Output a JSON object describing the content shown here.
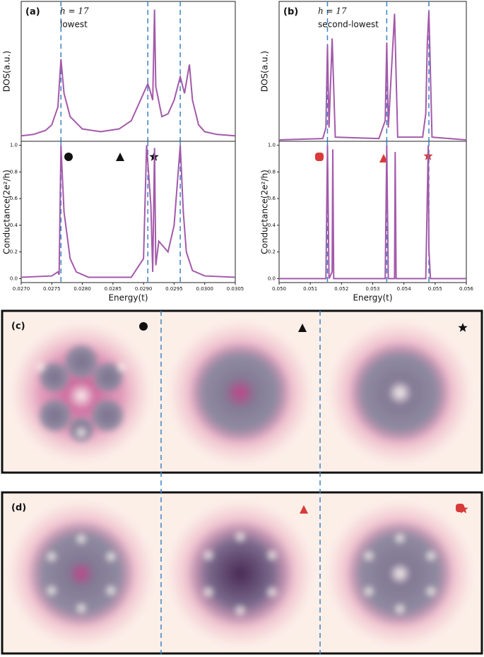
{
  "chart_data": [
    {
      "type": "line",
      "title": "(a)",
      "annotations": [
        "h = 17",
        "lowest"
      ],
      "ylabel": "DOS(a.u.)",
      "color": "#a35aaa",
      "x": [
        0.027,
        0.0272,
        0.0274,
        0.0275,
        0.0276,
        0.02765,
        0.0277,
        0.0278,
        0.028,
        0.0283,
        0.0286,
        0.0288,
        0.029,
        0.02907,
        0.0291,
        0.02915,
        0.02918,
        0.0292,
        0.0293,
        0.0294,
        0.0295,
        0.0296,
        0.02967,
        0.02975,
        0.0298,
        0.0299,
        0.03,
        0.0302,
        0.0305
      ],
      "values": [
        0.04,
        0.05,
        0.08,
        0.12,
        0.25,
        0.6,
        0.35,
        0.18,
        0.09,
        0.07,
        0.09,
        0.15,
        0.35,
        0.42,
        0.38,
        0.3,
        0.96,
        0.4,
        0.18,
        0.2,
        0.3,
        0.47,
        0.35,
        0.56,
        0.3,
        0.12,
        0.07,
        0.05,
        0.04
      ],
      "xlim": [
        0.027,
        0.0305
      ],
      "ylim": [
        0,
        1.02
      ],
      "vlines": [
        0.02765,
        0.02907,
        0.0296
      ],
      "vline_color": "#3b82c4"
    },
    {
      "type": "line",
      "ylabel": "Conductance(2e²/h)",
      "xlabel": "Energy(t)",
      "color": "#a35aaa",
      "x": [
        0.027,
        0.0275,
        0.0276,
        0.02762,
        0.02765,
        0.0277,
        0.0278,
        0.0279,
        0.0281,
        0.0288,
        0.029,
        0.02905,
        0.02912,
        0.02915,
        0.02918,
        0.0292,
        0.02925,
        0.0294,
        0.0295,
        0.0296,
        0.02965,
        0.0297,
        0.0298,
        0.03,
        0.0305
      ],
      "values": [
        0.01,
        0.02,
        0.05,
        0.03,
        1.0,
        0.5,
        0.15,
        0.05,
        0.01,
        0.01,
        0.15,
        1.0,
        0.55,
        0.05,
        0.98,
        0.1,
        0.28,
        0.2,
        0.4,
        1.0,
        0.5,
        0.2,
        0.06,
        0.02,
        0.01
      ],
      "xlim": [
        0.027,
        0.0305
      ],
      "ylim": [
        -0.03,
        1.03
      ],
      "xticks": [
        {
          "value": 0.027,
          "label": "0.0270"
        },
        {
          "value": 0.0275,
          "label": "0.0275"
        },
        {
          "value": 0.028,
          "label": "0.0280"
        },
        {
          "value": 0.0285,
          "label": "0.0285"
        },
        {
          "value": 0.029,
          "label": "0.0290"
        },
        {
          "value": 0.0295,
          "label": "0.0295"
        },
        {
          "value": 0.03,
          "label": "0.0300"
        },
        {
          "value": 0.0305,
          "label": "0.0305"
        }
      ],
      "yticks": [
        {
          "value": 0,
          "label": "0.0"
        },
        0.2,
        0.4,
        0.6,
        0.8,
        {
          "value": 1,
          "label": "1.0"
        }
      ],
      "vlines": [
        0.02765,
        0.02907,
        0.0296
      ],
      "vline_color": "#3b82c4"
    },
    {
      "type": "line",
      "title": "(b)",
      "annotations": [
        "h = 17",
        "second-lowest"
      ],
      "ylabel": "DOS(a.u.)",
      "color": "#a35aaa",
      "x": [
        0.05,
        0.0514,
        0.0515,
        0.05155,
        0.0516,
        0.0517,
        0.0518,
        0.0532,
        0.0534,
        0.05345,
        0.0535,
        0.0537,
        0.0538,
        0.0546,
        0.0547,
        0.05475,
        0.0548,
        0.0549,
        0.056
      ],
      "values": [
        0.01,
        0.02,
        0.1,
        0.7,
        0.1,
        0.75,
        0.03,
        0.02,
        0.15,
        0.72,
        0.1,
        0.93,
        0.03,
        0.03,
        0.2,
        0.72,
        0.95,
        0.03,
        0.01
      ],
      "xlim": [
        0.05,
        0.056
      ],
      "ylim": [
        0,
        1.02
      ],
      "vlines": [
        0.05155,
        0.05345,
        0.0548
      ],
      "vline_color": "#3b82c4"
    },
    {
      "type": "line",
      "ylabel": "Conductance(2e²/h)",
      "xlabel": "Energy(t)",
      "color": "#a35aaa",
      "x": [
        0.05,
        0.0515,
        0.05155,
        0.0516,
        0.0517,
        0.05172,
        0.05175,
        0.0534,
        0.05345,
        0.0535,
        0.0537,
        0.05372,
        0.05375,
        0.0547,
        0.05478,
        0.0548,
        0.05485,
        0.056
      ],
      "values": [
        0,
        0,
        1.0,
        0,
        0.05,
        0.97,
        0,
        0,
        1.0,
        0,
        0,
        0.95,
        0,
        0,
        1.0,
        0.22,
        0,
        0
      ],
      "xlim": [
        0.05,
        0.056
      ],
      "ylim": [
        -0.03,
        1.03
      ],
      "xticks": [
        {
          "value": 0.05,
          "label": "0.050"
        },
        {
          "value": 0.051,
          "label": "0.051"
        },
        {
          "value": 0.052,
          "label": "0.052"
        },
        {
          "value": 0.053,
          "label": "0.053"
        },
        {
          "value": 0.054,
          "label": "0.054"
        },
        {
          "value": 0.055,
          "label": "0.055"
        },
        {
          "value": 0.056,
          "label": "0.056"
        }
      ],
      "yticks": [
        {
          "value": 0,
          "label": "0.0"
        },
        0.2,
        0.4,
        0.6,
        0.8,
        {
          "value": 1,
          "label": "1.0"
        }
      ],
      "vlines": [
        0.05155,
        0.05345,
        0.0548
      ],
      "vline_color": "#3b82c4"
    }
  ],
  "panels": [
    {
      "label": "(c)"
    },
    {
      "label": "(d)"
    }
  ]
}
